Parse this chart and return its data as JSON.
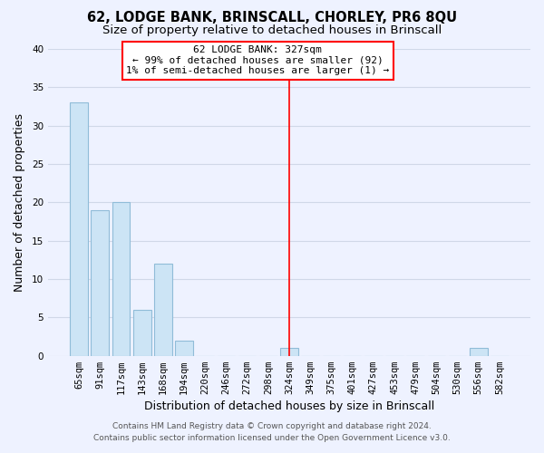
{
  "title": "62, LODGE BANK, BRINSCALL, CHORLEY, PR6 8QU",
  "subtitle": "Size of property relative to detached houses in Brinscall",
  "xlabel": "Distribution of detached houses by size in Brinscall",
  "ylabel": "Number of detached properties",
  "bar_labels": [
    "65sqm",
    "91sqm",
    "117sqm",
    "143sqm",
    "168sqm",
    "194sqm",
    "220sqm",
    "246sqm",
    "272sqm",
    "298sqm",
    "324sqm",
    "349sqm",
    "375sqm",
    "401sqm",
    "427sqm",
    "453sqm",
    "479sqm",
    "504sqm",
    "530sqm",
    "556sqm",
    "582sqm"
  ],
  "bar_values": [
    33,
    19,
    20,
    6,
    12,
    2,
    0,
    0,
    0,
    0,
    1,
    0,
    0,
    0,
    0,
    0,
    0,
    0,
    0,
    1,
    0
  ],
  "bar_color": "#cce4f5",
  "bar_edge_color": "#90bcd8",
  "vline_color": "red",
  "vline_x": 10.0,
  "ylim": [
    0,
    40
  ],
  "yticks": [
    0,
    5,
    10,
    15,
    20,
    25,
    30,
    35,
    40
  ],
  "annotation_title": "62 LODGE BANK: 327sqm",
  "annotation_line1": "← 99% of detached houses are smaller (92)",
  "annotation_line2": "1% of semi-detached houses are larger (1) →",
  "footnote1": "Contains HM Land Registry data © Crown copyright and database right 2024.",
  "footnote2": "Contains public sector information licensed under the Open Government Licence v3.0.",
  "background_color": "#eef2ff",
  "grid_color": "#d0d8e8",
  "title_fontsize": 10.5,
  "subtitle_fontsize": 9.5,
  "axis_label_fontsize": 9,
  "tick_fontsize": 7.5,
  "annotation_fontsize": 8,
  "footnote_fontsize": 6.5
}
